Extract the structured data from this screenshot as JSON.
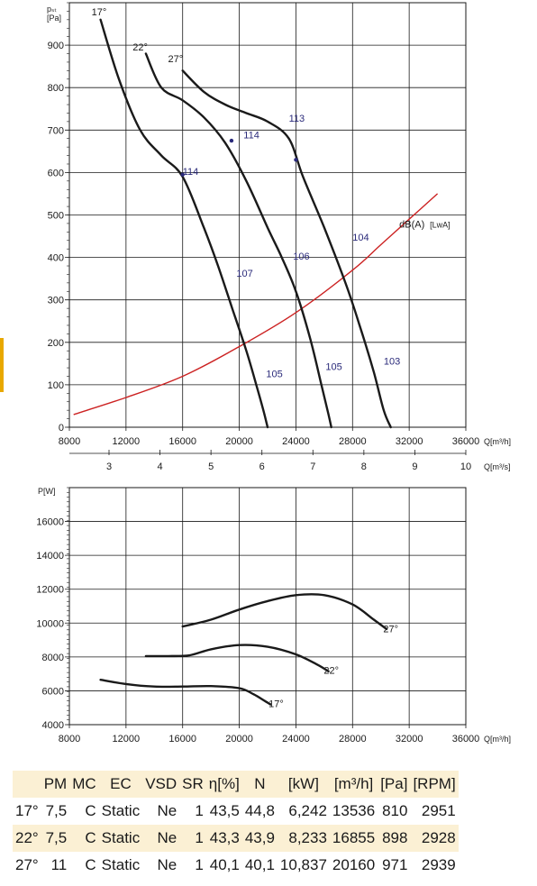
{
  "colors": {
    "curve": "#1a1a1a",
    "sound_curve": "#cc2222",
    "blue_marks": "#2a2a7a",
    "table_shade": "#fbf0d4",
    "accent": "#e8a800"
  },
  "chart_data": [
    {
      "type": "line",
      "title": "",
      "ylabel_line1": "pₛₜ",
      "ylabel_line2": "[Pa]",
      "xlabel": "Q[m³/h]",
      "x2label": "Q[m³/s]",
      "xlim": [
        8000,
        36000
      ],
      "ylim": [
        0,
        1000
      ],
      "xticks": [
        "8000",
        "12000",
        "16000",
        "20000",
        "24000",
        "28000",
        "32000",
        "36000"
      ],
      "yticks": [
        "0",
        "100",
        "200",
        "300",
        "400",
        "500",
        "600",
        "700",
        "800",
        "900"
      ],
      "x2ticks": [
        "3",
        "4",
        "5",
        "6",
        "7",
        "8",
        "9",
        "10"
      ],
      "grid": true,
      "series": [
        {
          "name": "17°",
          "points": [
            [
              10200,
              960
            ],
            [
              11500,
              820
            ],
            [
              13000,
              700
            ],
            [
              14500,
              640
            ],
            [
              16000,
              590
            ],
            [
              17500,
              470
            ],
            [
              18500,
              380
            ],
            [
              19500,
              280
            ],
            [
              20500,
              180
            ],
            [
              21200,
              100
            ],
            [
              21700,
              40
            ],
            [
              22000,
              0
            ]
          ]
        },
        {
          "name": "22°",
          "points": [
            [
              13400,
              880
            ],
            [
              14500,
              800
            ],
            [
              16000,
              770
            ],
            [
              17500,
              730
            ],
            [
              19000,
              670
            ],
            [
              20500,
              580
            ],
            [
              22000,
              470
            ],
            [
              23000,
              400
            ],
            [
              24000,
              320
            ],
            [
              25000,
              210
            ],
            [
              25800,
              100
            ],
            [
              26300,
              30
            ],
            [
              26500,
              0
            ]
          ]
        },
        {
          "name": "27°",
          "points": [
            [
              16000,
              840
            ],
            [
              17500,
              790
            ],
            [
              19000,
              760
            ],
            [
              20500,
              740
            ],
            [
              22000,
              720
            ],
            [
              23500,
              680
            ],
            [
              24500,
              590
            ],
            [
              26000,
              470
            ],
            [
              27500,
              340
            ],
            [
              28500,
              240
            ],
            [
              29500,
              130
            ],
            [
              30200,
              40
            ],
            [
              30700,
              0
            ]
          ]
        }
      ],
      "sound_curve": {
        "name": "dB(A) [LwA]",
        "points": [
          [
            8300,
            30
          ],
          [
            12000,
            70
          ],
          [
            16000,
            120
          ],
          [
            20000,
            190
          ],
          [
            24000,
            270
          ],
          [
            28000,
            370
          ],
          [
            30000,
            430
          ],
          [
            32000,
            490
          ],
          [
            34000,
            550
          ]
        ]
      },
      "sound_labels": [
        {
          "text": "114",
          "q": 16000,
          "p": 595
        },
        {
          "text": "107",
          "q": 19800,
          "p": 355
        },
        {
          "text": "105",
          "q": 21900,
          "p": 118
        },
        {
          "text": "114",
          "q": 20300,
          "p": 680
        },
        {
          "text": "106",
          "q": 23800,
          "p": 395
        },
        {
          "text": "105",
          "q": 26100,
          "p": 135
        },
        {
          "text": "113",
          "q": 23500,
          "p": 720
        },
        {
          "text": "104",
          "q": 28000,
          "p": 440
        },
        {
          "text": "103",
          "q": 30200,
          "p": 148
        }
      ],
      "sound_dots": [
        [
          16000,
          595
        ],
        [
          19450,
          675
        ],
        [
          24000,
          630
        ]
      ],
      "sound_curve_label": {
        "text": "dB(A)",
        "sub": "[LwA]",
        "q": 31300,
        "p": 460
      },
      "angle_labels": [
        {
          "text": "17°",
          "q": 10100,
          "p": 970
        },
        {
          "text": "22°",
          "q": 13000,
          "p": 888
        },
        {
          "text": "27°",
          "q": 15500,
          "p": 860
        }
      ]
    },
    {
      "type": "line",
      "title": "",
      "ylabel": "P[W]",
      "xlabel": "Q[m³/h]",
      "xlim": [
        8000,
        36000
      ],
      "ylim": [
        4000,
        18000
      ],
      "xticks": [
        "8000",
        "12000",
        "16000",
        "20000",
        "24000",
        "28000",
        "32000",
        "36000"
      ],
      "yticks": [
        "4000",
        "6000",
        "8000",
        "10000",
        "12000",
        "14000",
        "16000"
      ],
      "grid": true,
      "series": [
        {
          "name": "17°",
          "points": [
            [
              10200,
              6650
            ],
            [
              12000,
              6400
            ],
            [
              14000,
              6250
            ],
            [
              16000,
              6250
            ],
            [
              18000,
              6280
            ],
            [
              20000,
              6150
            ],
            [
              21000,
              5800
            ],
            [
              21800,
              5400
            ],
            [
              22200,
              5200
            ]
          ]
        },
        {
          "name": "22°",
          "points": [
            [
              13400,
              8050
            ],
            [
              15000,
              8050
            ],
            [
              16500,
              8100
            ],
            [
              18000,
              8450
            ],
            [
              20000,
              8700
            ],
            [
              22000,
              8600
            ],
            [
              24000,
              8150
            ],
            [
              25500,
              7550
            ],
            [
              26300,
              7150
            ]
          ]
        },
        {
          "name": "27°",
          "points": [
            [
              16000,
              9800
            ],
            [
              18000,
              10200
            ],
            [
              20000,
              10800
            ],
            [
              22000,
              11300
            ],
            [
              24000,
              11650
            ],
            [
              26000,
              11650
            ],
            [
              28000,
              11100
            ],
            [
              29500,
              10200
            ],
            [
              30400,
              9650
            ]
          ]
        }
      ],
      "angle_labels": [
        {
          "text": "17°",
          "q": 22600,
          "p": 5050
        },
        {
          "text": "22°",
          "q": 26500,
          "p": 7000
        },
        {
          "text": "27°",
          "q": 30700,
          "p": 9450
        }
      ]
    },
    {
      "type": "table",
      "headers": [
        "",
        "PM",
        "MC",
        "EC",
        "VSD",
        "SR",
        "η[%]",
        "N",
        "[kW]",
        "[m³/h]",
        "[Pa]",
        "[RPM]"
      ],
      "rows": [
        [
          "17°",
          "7,5",
          "C",
          "Static",
          "Ne",
          "1",
          "43,5",
          "44,8",
          "6,242",
          "13536",
          "810",
          "2951"
        ],
        [
          "22°",
          "7,5",
          "C",
          "Static",
          "Ne",
          "1",
          "43,3",
          "43,9",
          "8,233",
          "16855",
          "898",
          "2928"
        ],
        [
          "27°",
          "11",
          "C",
          "Static",
          "Ne",
          "1",
          "40,1",
          "40,1",
          "10,837",
          "20160",
          "971",
          "2939"
        ]
      ]
    }
  ]
}
